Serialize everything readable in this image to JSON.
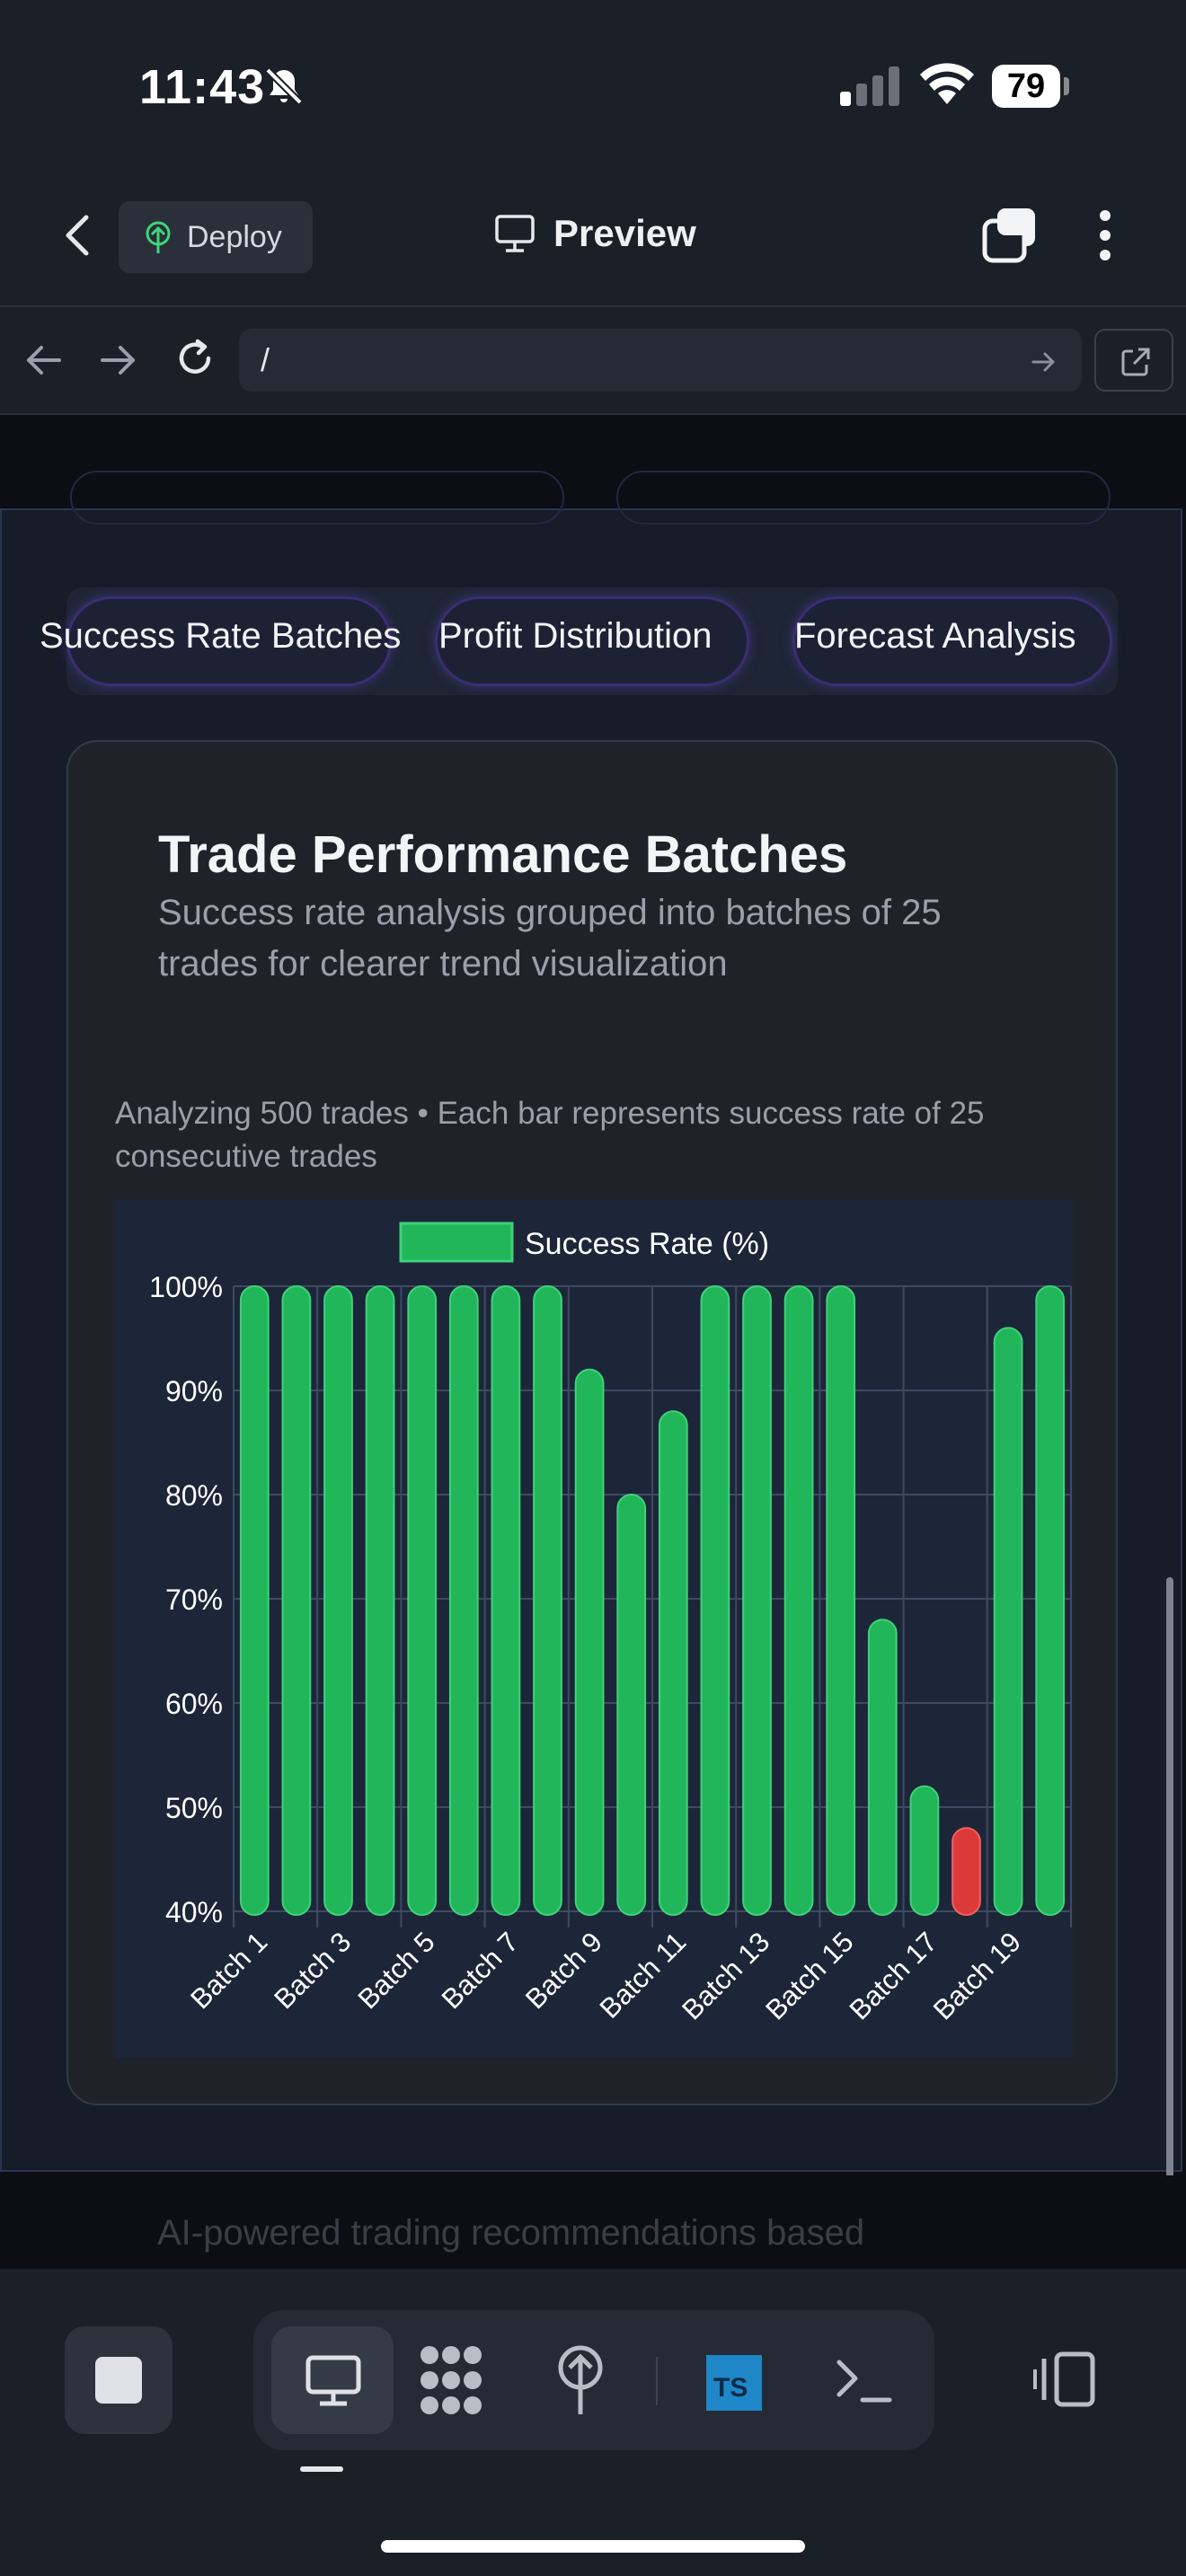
{
  "status_bar": {
    "time": "11:43",
    "battery": "79"
  },
  "app_bar": {
    "deploy_label": "Deploy",
    "preview_label": "Preview"
  },
  "url_bar": {
    "url": "/"
  },
  "segments": [
    {
      "label": "Success Rate Batches"
    },
    {
      "label": "Profit Distribution"
    },
    {
      "label": "Forecast Analysis"
    }
  ],
  "card": {
    "title": "Trade Performance Batches",
    "subtitle": "Success rate analysis grouped into batches of 25 trades for clearer trend visualization",
    "note": "Analyzing 500 trades • Each bar represents success rate of 25 consecutive trades"
  },
  "chart_data": {
    "type": "bar",
    "legend": [
      "Success Rate (%)"
    ],
    "legend_position": "top",
    "categories": [
      "Batch 1",
      "Batch 2",
      "Batch 3",
      "Batch 4",
      "Batch 5",
      "Batch 6",
      "Batch 7",
      "Batch 8",
      "Batch 9",
      "Batch 10",
      "Batch 11",
      "Batch 12",
      "Batch 13",
      "Batch 14",
      "Batch 15",
      "Batch 16",
      "Batch 17",
      "Batch 18",
      "Batch 19",
      "Batch 20"
    ],
    "tick_labels_x": [
      "Batch 1",
      "Batch 3",
      "Batch 5",
      "Batch 7",
      "Batch 9",
      "Batch 11",
      "Batch 13",
      "Batch 15",
      "Batch 17",
      "Batch 19"
    ],
    "series": [
      {
        "name": "Success Rate (%)",
        "values": [
          100,
          100,
          100,
          100,
          100,
          100,
          100,
          100,
          92,
          80,
          88,
          100,
          100,
          100,
          100,
          68,
          52,
          48,
          96,
          100
        ]
      }
    ],
    "ylim": [
      40,
      100
    ],
    "yticks": [
      "40%",
      "50%",
      "60%",
      "70%",
      "80%",
      "90%",
      "100%"
    ],
    "grid": true,
    "colors": {
      "good": "#22b65b",
      "bad": "#dc3a3a",
      "grid": "#3e4a63",
      "axis_text": "#ffffff"
    },
    "bad_threshold": 50
  },
  "bottom": {
    "faded_text": "AI-powered trading recommendations based"
  },
  "toolbar": {
    "ts_label": "TS"
  }
}
